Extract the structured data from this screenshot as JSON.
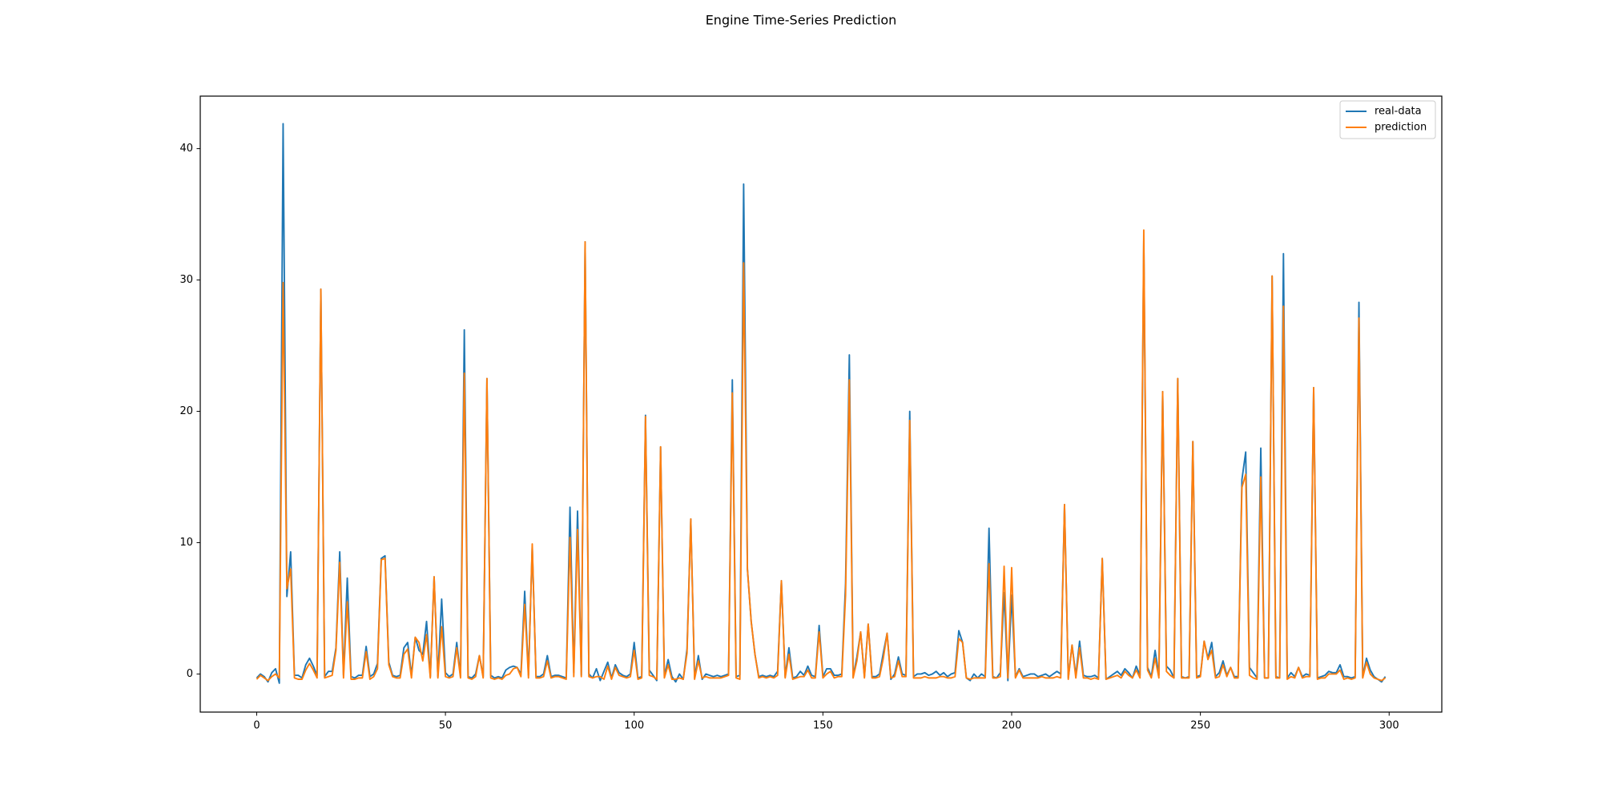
{
  "chart_data": {
    "type": "line",
    "title": "Engine Time-Series Prediction",
    "x": [
      0,
      1,
      2,
      3,
      4,
      5,
      6,
      7,
      8,
      9,
      10,
      11,
      12,
      13,
      14,
      15,
      16,
      17,
      18,
      19,
      20,
      21,
      22,
      23,
      24,
      25,
      26,
      27,
      28,
      29,
      30,
      31,
      32,
      33,
      34,
      35,
      36,
      37,
      38,
      39,
      40,
      41,
      42,
      43,
      44,
      45,
      46,
      47,
      48,
      49,
      50,
      51,
      52,
      53,
      54,
      55,
      56,
      57,
      58,
      59,
      60,
      61,
      62,
      63,
      64,
      65,
      66,
      67,
      68,
      69,
      70,
      71,
      72,
      73,
      74,
      75,
      76,
      77,
      78,
      79,
      80,
      81,
      82,
      83,
      84,
      85,
      86,
      87,
      88,
      89,
      90,
      91,
      92,
      93,
      94,
      95,
      96,
      97,
      98,
      99,
      100,
      101,
      102,
      103,
      104,
      105,
      106,
      107,
      108,
      109,
      110,
      111,
      112,
      113,
      114,
      115,
      116,
      117,
      118,
      119,
      120,
      121,
      122,
      123,
      124,
      125,
      126,
      127,
      128,
      129,
      130,
      131,
      132,
      133,
      134,
      135,
      136,
      137,
      138,
      139,
      140,
      141,
      142,
      143,
      144,
      145,
      146,
      147,
      148,
      149,
      150,
      151,
      152,
      153,
      154,
      155,
      156,
      157,
      158,
      159,
      160,
      161,
      162,
      163,
      164,
      165,
      166,
      167,
      168,
      169,
      170,
      171,
      172,
      173,
      174,
      175,
      176,
      177,
      178,
      179,
      180,
      181,
      182,
      183,
      184,
      185,
      186,
      187,
      188,
      189,
      190,
      191,
      192,
      193,
      194,
      195,
      196,
      197,
      198,
      199,
      200,
      201,
      202,
      203,
      204,
      205,
      206,
      207,
      208,
      209,
      210,
      211,
      212,
      213,
      214,
      215,
      216,
      217,
      218,
      219,
      220,
      221,
      222,
      223,
      224,
      225,
      226,
      227,
      228,
      229,
      230,
      231,
      232,
      233,
      234,
      235,
      236,
      237,
      238,
      239,
      240,
      241,
      242,
      243,
      244,
      245,
      246,
      247,
      248,
      249,
      250,
      251,
      252,
      253,
      254,
      255,
      256,
      257,
      258,
      259,
      260,
      261,
      262,
      263,
      264,
      265,
      266,
      267,
      268,
      269,
      270,
      271,
      272,
      273,
      274,
      275,
      276,
      277,
      278,
      279,
      280,
      281,
      282,
      283,
      284,
      285,
      286,
      287,
      288,
      289,
      290,
      291,
      292,
      293,
      294,
      295,
      296,
      297,
      298,
      299
    ],
    "series": [
      {
        "name": "real-data",
        "color": "#1f77b4",
        "values": [
          -0.3,
          0.0,
          -0.2,
          -0.6,
          0.1,
          0.4,
          -0.7,
          41.9,
          5.9,
          9.3,
          -0.1,
          -0.1,
          -0.3,
          0.7,
          1.2,
          0.6,
          -0.1,
          29.3,
          -0.2,
          0.2,
          0.2,
          2.0,
          9.3,
          -0.1,
          7.3,
          -0.2,
          -0.3,
          -0.1,
          -0.1,
          2.1,
          -0.2,
          0.0,
          0.8,
          8.8,
          9.0,
          0.9,
          -0.1,
          -0.2,
          -0.1,
          2.0,
          2.4,
          -0.1,
          2.8,
          1.8,
          1.5,
          4.0,
          -0.2,
          7.4,
          -0.2,
          5.7,
          0.1,
          -0.2,
          0.0,
          2.4,
          -0.2,
          26.2,
          -0.2,
          -0.3,
          0.0,
          1.4,
          -0.2,
          22.5,
          -0.1,
          -0.3,
          -0.2,
          -0.3,
          0.3,
          0.5,
          0.6,
          0.5,
          0.0,
          6.3,
          -0.1,
          9.7,
          -0.2,
          -0.2,
          0.0,
          1.4,
          -0.2,
          -0.1,
          -0.1,
          -0.2,
          -0.3,
          12.7,
          0.1,
          12.4,
          -0.1,
          32.9,
          0.0,
          -0.3,
          0.4,
          -0.5,
          0.2,
          0.9,
          -0.3,
          0.7,
          0.1,
          -0.1,
          -0.2,
          0.0,
          2.4,
          -0.3,
          -0.2,
          19.7,
          0.3,
          -0.1,
          -0.5,
          17.3,
          -0.2,
          1.1,
          -0.2,
          -0.6,
          0.0,
          -0.4,
          1.9,
          11.8,
          -0.3,
          1.4,
          -0.4,
          0.0,
          -0.1,
          -0.2,
          -0.1,
          -0.2,
          -0.1,
          0.0,
          22.4,
          -0.2,
          -0.1,
          37.3,
          8.0,
          4.0,
          1.5,
          -0.2,
          -0.1,
          -0.2,
          -0.1,
          -0.2,
          0.2,
          7.1,
          -0.2,
          2.0,
          -0.3,
          -0.2,
          0.2,
          -0.1,
          0.6,
          -0.1,
          -0.2,
          3.7,
          -0.2,
          0.4,
          0.4,
          -0.1,
          -0.1,
          0.0,
          6.9,
          24.3,
          -0.2,
          1.3,
          3.2,
          -0.2,
          3.8,
          -0.2,
          -0.2,
          0.0,
          1.6,
          3.1,
          -0.4,
          0.0,
          1.3,
          0.0,
          -0.1,
          20.0,
          -0.2,
          0.0,
          0.0,
          0.1,
          -0.1,
          0.0,
          0.2,
          -0.1,
          0.1,
          -0.2,
          0.0,
          0.1,
          3.3,
          2.4,
          -0.3,
          -0.5,
          0.0,
          -0.3,
          0.0,
          -0.2,
          11.1,
          -0.2,
          -0.3,
          0.1,
          6.2,
          -0.5,
          6.0,
          -0.2,
          0.4,
          -0.2,
          -0.1,
          0.0,
          0.0,
          -0.2,
          -0.1,
          0.0,
          -0.2,
          0.0,
          0.2,
          0.0,
          12.9,
          -0.3,
          2.2,
          -0.1,
          2.5,
          -0.1,
          -0.2,
          -0.2,
          -0.1,
          -0.3,
          8.8,
          -0.4,
          -0.2,
          0.0,
          0.2,
          -0.1,
          0.4,
          0.1,
          -0.3,
          0.6,
          -0.1,
          33.0,
          0.5,
          -0.2,
          1.8,
          -0.1,
          21.5,
          0.6,
          0.3,
          -0.3,
          22.5,
          -0.2,
          -0.3,
          -0.2,
          17.7,
          -0.2,
          -0.1,
          2.5,
          1.2,
          2.4,
          -0.2,
          0.1,
          1.0,
          -0.1,
          0.5,
          -0.2,
          -0.2,
          14.8,
          16.9,
          0.5,
          0.1,
          -0.3,
          17.2,
          -0.3,
          -0.3,
          30.3,
          -0.2,
          -0.3,
          32.0,
          -0.3,
          0.1,
          -0.2,
          0.5,
          -0.2,
          0.0,
          -0.1,
          21.8,
          -0.3,
          -0.2,
          -0.1,
          0.2,
          0.1,
          0.1,
          0.7,
          -0.2,
          -0.2,
          -0.3,
          -0.2,
          28.3,
          -0.2,
          1.2,
          0.3,
          -0.2,
          -0.4,
          -0.6,
          -0.2
        ]
      },
      {
        "name": "prediction",
        "color": "#ff7f0e",
        "values": [
          -0.4,
          -0.1,
          -0.3,
          -0.5,
          -0.2,
          0.0,
          -0.3,
          29.8,
          6.5,
          8.0,
          -0.3,
          -0.4,
          -0.4,
          0.3,
          0.8,
          0.3,
          -0.3,
          29.3,
          -0.3,
          -0.2,
          -0.1,
          1.8,
          8.5,
          -0.3,
          5.5,
          -0.4,
          -0.4,
          -0.3,
          -0.3,
          1.7,
          -0.4,
          -0.2,
          0.4,
          8.7,
          8.8,
          0.7,
          -0.2,
          -0.3,
          -0.3,
          1.5,
          1.9,
          -0.3,
          2.8,
          2.4,
          1.0,
          3.0,
          -0.3,
          7.4,
          -0.3,
          3.6,
          -0.2,
          -0.3,
          -0.2,
          2.0,
          -0.3,
          22.9,
          -0.3,
          -0.4,
          -0.2,
          1.4,
          -0.3,
          22.5,
          -0.3,
          -0.4,
          -0.3,
          -0.4,
          -0.1,
          0.0,
          0.4,
          0.5,
          -0.2,
          5.3,
          -0.3,
          9.9,
          -0.3,
          -0.3,
          -0.2,
          1.0,
          -0.3,
          -0.2,
          -0.2,
          -0.3,
          -0.4,
          10.4,
          -0.2,
          11.0,
          -0.2,
          32.9,
          -0.2,
          -0.3,
          -0.2,
          -0.2,
          -0.4,
          0.6,
          -0.4,
          0.5,
          -0.1,
          -0.2,
          -0.3,
          -0.2,
          1.8,
          -0.4,
          -0.3,
          19.6,
          -0.1,
          -0.2,
          -0.4,
          17.3,
          -0.3,
          0.7,
          -0.4,
          -0.4,
          -0.3,
          -0.4,
          1.6,
          11.8,
          -0.4,
          1.0,
          -0.3,
          -0.2,
          -0.3,
          -0.3,
          -0.3,
          -0.3,
          -0.2,
          -0.1,
          21.4,
          -0.3,
          -0.4,
          31.3,
          8.0,
          4.0,
          1.5,
          -0.3,
          -0.2,
          -0.3,
          -0.2,
          -0.3,
          -0.1,
          7.1,
          -0.3,
          1.5,
          -0.4,
          -0.3,
          -0.2,
          -0.2,
          0.3,
          -0.3,
          -0.3,
          3.2,
          -0.3,
          0.0,
          0.2,
          -0.3,
          -0.2,
          -0.2,
          6.0,
          22.4,
          -0.3,
          1.0,
          3.2,
          -0.3,
          3.8,
          -0.3,
          -0.3,
          -0.2,
          1.2,
          3.1,
          -0.3,
          -0.2,
          1.0,
          -0.2,
          -0.2,
          19.3,
          -0.3,
          -0.3,
          -0.3,
          -0.2,
          -0.3,
          -0.3,
          -0.3,
          -0.2,
          -0.2,
          -0.3,
          -0.3,
          -0.2,
          2.7,
          2.4,
          -0.3,
          -0.4,
          -0.3,
          -0.3,
          -0.3,
          -0.3,
          8.4,
          -0.3,
          -0.3,
          -0.2,
          8.2,
          -0.3,
          8.1,
          -0.3,
          0.3,
          -0.3,
          -0.3,
          -0.3,
          -0.3,
          -0.3,
          -0.2,
          -0.3,
          -0.3,
          -0.3,
          -0.2,
          -0.3,
          12.9,
          -0.4,
          2.2,
          -0.3,
          2.0,
          -0.3,
          -0.3,
          -0.4,
          -0.3,
          -0.4,
          8.8,
          -0.4,
          -0.3,
          -0.2,
          -0.1,
          -0.3,
          0.2,
          -0.1,
          -0.3,
          0.3,
          -0.3,
          33.8,
          0.3,
          -0.3,
          1.2,
          -0.3,
          21.5,
          0.2,
          -0.1,
          -0.3,
          22.5,
          -0.3,
          -0.3,
          -0.3,
          17.7,
          -0.3,
          -0.2,
          2.5,
          1.1,
          1.8,
          -0.3,
          -0.2,
          0.7,
          -0.2,
          0.5,
          -0.3,
          -0.3,
          14.2,
          15.2,
          -0.1,
          -0.3,
          -0.4,
          15.0,
          -0.3,
          -0.3,
          30.3,
          -0.3,
          -0.3,
          28.0,
          -0.4,
          -0.2,
          -0.3,
          0.5,
          -0.3,
          -0.2,
          -0.2,
          21.8,
          -0.4,
          -0.3,
          -0.3,
          0.0,
          0.0,
          0.0,
          0.3,
          -0.4,
          -0.3,
          -0.4,
          -0.3,
          27.1,
          -0.3,
          0.9,
          0.0,
          -0.3,
          -0.4,
          -0.5,
          -0.3
        ]
      }
    ],
    "xlim": [
      -14.95,
      313.95
    ],
    "ylim": [
      -2.9,
      44.0
    ],
    "xticks": [
      0,
      50,
      100,
      150,
      200,
      250,
      300
    ],
    "yticks": [
      0,
      10,
      20,
      30,
      40
    ],
    "grid": false,
    "legend": "upper-right"
  }
}
